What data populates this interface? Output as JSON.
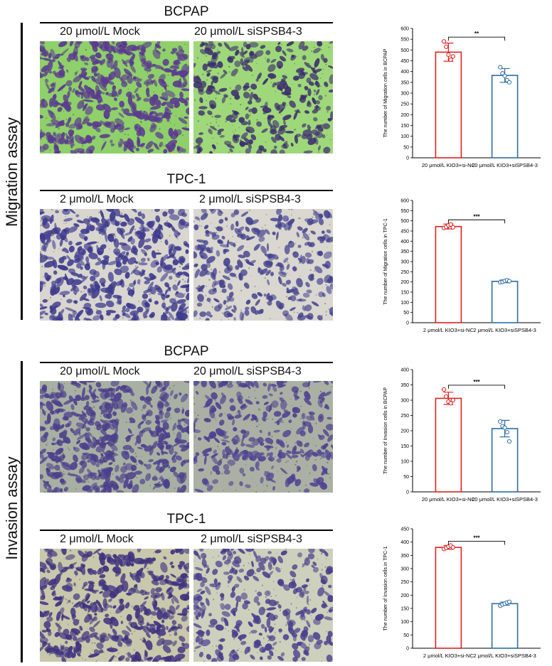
{
  "sections": {
    "migration_label": "Migration assay",
    "invasion_label": "Invasion assay"
  },
  "panels": [
    {
      "id": "mig-bcpap",
      "title": "BCPAP",
      "left_label": "20 μmol/L Mock",
      "right_label": "20 μmol/L siSPSB4-3",
      "left_image": {
        "style": "migration-bcpap-dense",
        "background": "#8fd06a",
        "cell": "#5b3a8f"
      },
      "right_image": {
        "style": "migration-bcpap-sparse",
        "background": "#9fd87a",
        "cell": "#3e2f6e"
      }
    },
    {
      "id": "mig-tpc1",
      "title": "TPC-1",
      "left_label": "2 μmol/L  Mock",
      "right_label": "2 μmol/L  siSPSB4-3",
      "left_image": {
        "style": "migration-tpc1-dense",
        "background": "#d8d6cf",
        "cell": "#3f3b8e"
      },
      "right_image": {
        "style": "migration-tpc1-sparse",
        "background": "#d9d7cf",
        "cell": "#45428f"
      }
    },
    {
      "id": "inv-bcpap",
      "title": "BCPAP",
      "left_label": "20 μmol/L  Mock",
      "right_label": "20 μmol/L  siSPSB4-3",
      "left_image": {
        "style": "invasion-bcpap-dense",
        "background": "#a8b0a3",
        "cell": "#4c3f8c"
      },
      "right_image": {
        "style": "invasion-bcpap-sparse",
        "background": "#aab1a4",
        "cell": "#4e4290"
      }
    },
    {
      "id": "inv-tpc1",
      "title": "TPC-1",
      "left_label": "2 μmol/L  Mock",
      "right_label": "2 μmol/L  siSPSB4-3",
      "left_image": {
        "style": "invasion-tpc1-dense",
        "background": "#c9c8ac",
        "cell": "#40337f"
      },
      "right_image": {
        "style": "invasion-tpc1-sparse",
        "background": "#cdd0bc",
        "cell": "#4a3f8d"
      }
    }
  ],
  "chart_data": [
    {
      "type": "bar",
      "title": "",
      "ylabel": "The number of Migration cells in BCPAP",
      "xlabel": "",
      "categories": [
        "20 μmol/L KIO3+si-NC",
        "20 μmol/L KIO3+siSPSB4-3"
      ],
      "values": [
        490,
        382
      ],
      "errors": [
        42,
        32
      ],
      "points": [
        [
          540,
          515,
          478,
          455,
          470
        ],
        [
          420,
          392,
          380,
          360,
          350
        ]
      ],
      "colors": [
        "#e02020",
        "#2f6da3"
      ],
      "ylim": [
        0,
        600
      ],
      "ticks": [
        0,
        50,
        100,
        150,
        200,
        250,
        300,
        350,
        400,
        450,
        500,
        550,
        600
      ],
      "significance": "**"
    },
    {
      "type": "bar",
      "title": "",
      "ylabel": "The number of Migration cells in TPC-1",
      "xlabel": "",
      "categories": [
        "2 μmol/L KIO3+si-NC",
        "2 μmol/L KIO3+siSPSB4-3"
      ],
      "values": [
        472,
        203
      ],
      "errors": [
        12,
        7
      ],
      "points": [
        [
          465,
          470,
          478,
          482,
          468
        ],
        [
          198,
          200,
          205,
          208,
          204
        ]
      ],
      "colors": [
        "#e02020",
        "#2f6da3"
      ],
      "ylim": [
        0,
        600
      ],
      "ticks": [
        0,
        50,
        100,
        150,
        200,
        250,
        300,
        350,
        400,
        450,
        500,
        550,
        600
      ],
      "significance": "***"
    },
    {
      "type": "bar",
      "title": "",
      "ylabel": "The number of Invasion cells in BCPAP",
      "xlabel": "",
      "categories": [
        "20 μmol/L KIO3+si-NC",
        "20 μmol/L KIO3+siSPSB4-3"
      ],
      "values": [
        306,
        207
      ],
      "errors": [
        20,
        27
      ],
      "points": [
        [
          335,
          312,
          295,
          290,
          300
        ],
        [
          230,
          215,
          210,
          195,
          165
        ]
      ],
      "colors": [
        "#e02020",
        "#2f6da3"
      ],
      "ylim": [
        0,
        400
      ],
      "ticks": [
        0,
        50,
        100,
        150,
        200,
        250,
        300,
        350,
        400
      ],
      "significance": "***"
    },
    {
      "type": "bar",
      "title": "",
      "ylabel": "The number of Invasion cells in TPC-1",
      "xlabel": "",
      "categories": [
        "2 μmol/L KIO3+si-NC",
        "2 μmol/L KIO3+siSPSB4-3"
      ],
      "values": [
        380,
        168
      ],
      "errors": [
        7,
        6
      ],
      "points": [
        [
          374,
          378,
          383,
          387,
          380
        ],
        [
          160,
          165,
          168,
          172,
          175
        ]
      ],
      "colors": [
        "#e02020",
        "#2f6da3"
      ],
      "ylim": [
        0,
        450
      ],
      "ticks": [
        0,
        50,
        100,
        150,
        200,
        250,
        300,
        350,
        400,
        450
      ],
      "significance": "***"
    }
  ]
}
